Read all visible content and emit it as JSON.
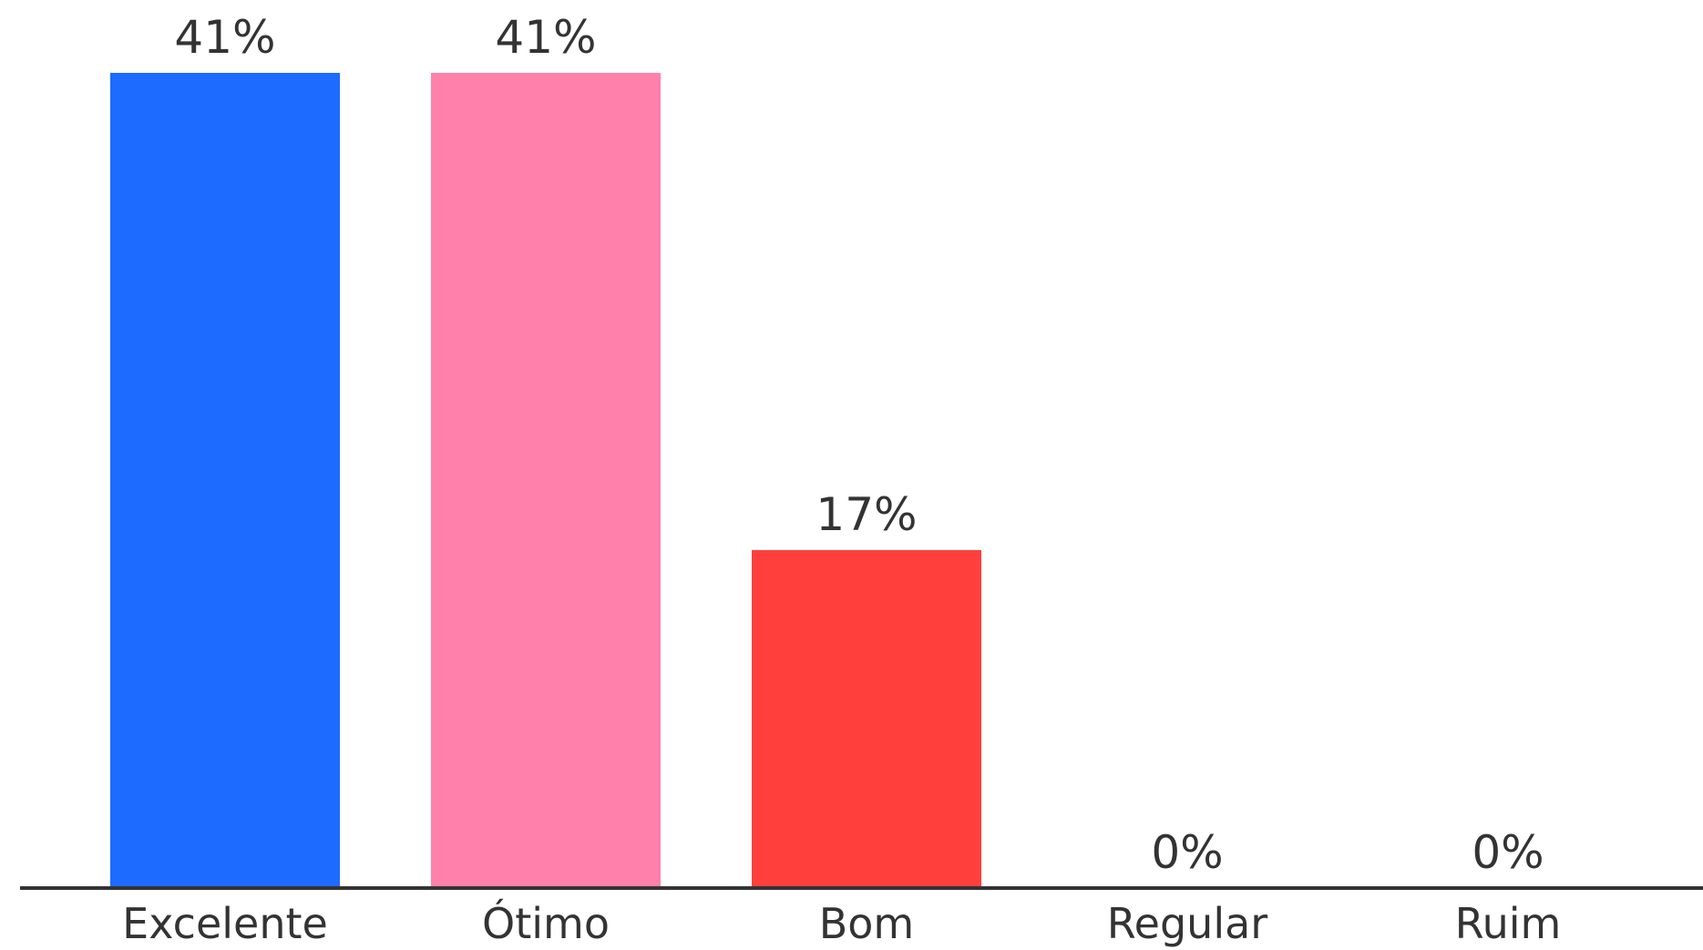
{
  "chart_data": {
    "type": "bar",
    "title": "",
    "xlabel": "",
    "ylabel": "",
    "ylim": [
      0,
      41
    ],
    "grid": false,
    "legend": "none",
    "categories": [
      "Excelente",
      "Ótimo",
      "Bom",
      "Regular",
      "Ruim"
    ],
    "values": [
      41,
      41,
      17,
      0,
      0
    ],
    "value_labels": [
      "41%",
      "41%",
      "17%",
      "0%",
      "0%"
    ],
    "colors": [
      "#1e6bff",
      "#ff80ab",
      "#ff3f3c",
      "#ff3f3c",
      "#ff3f3c"
    ],
    "axis_color": "#333333",
    "label_color": "#333333"
  }
}
